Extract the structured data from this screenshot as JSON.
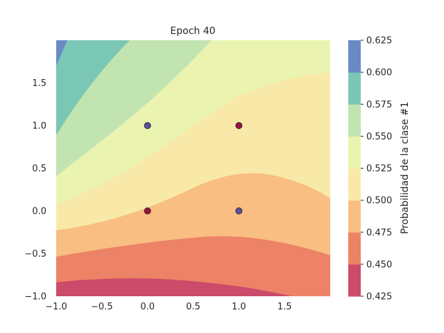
{
  "chart_data": {
    "type": "contourf",
    "title": "Epoch 40",
    "xlabel": "",
    "ylabel": "",
    "xlim": [
      -1.0,
      2.0
    ],
    "ylim": [
      -1.0,
      2.0
    ],
    "x_ticks": [
      "−1.0",
      "−0.5",
      "0.0",
      "0.5",
      "1.0",
      "1.5"
    ],
    "x_tick_values": [
      -1.0,
      -0.5,
      0.0,
      0.5,
      1.0,
      1.5
    ],
    "y_ticks": [
      "−1.0",
      "−0.5",
      "0.0",
      "0.5",
      "1.0",
      "1.5"
    ],
    "y_tick_values": [
      -1.0,
      -0.5,
      0.0,
      0.5,
      1.0,
      1.5
    ],
    "colorbar": {
      "label": "Probabilidad de la clase #1",
      "levels": [
        0.425,
        0.45,
        0.475,
        0.5,
        0.525,
        0.55,
        0.575,
        0.6,
        0.625
      ],
      "tick_labels": [
        "0.425",
        "0.450",
        "0.475",
        "0.500",
        "0.525",
        "0.550",
        "0.575",
        "0.600",
        "0.625"
      ],
      "colors": [
        "#cc4a6a",
        "#ec8266",
        "#f8be82",
        "#f8e9a8",
        "#eaf4b0",
        "#c2e4b0",
        "#7ac7b5",
        "#6a8ac6"
      ]
    },
    "points": [
      {
        "x": 0,
        "y": 0,
        "class": 1,
        "color": "#a0103c"
      },
      {
        "x": 1,
        "y": 1,
        "class": 1,
        "color": "#a0103c"
      },
      {
        "x": 0,
        "y": 1,
        "class": 0,
        "color": "#5a4fa0"
      },
      {
        "x": 1,
        "y": 0,
        "class": 0,
        "color": "#5a4fa0"
      }
    ]
  }
}
